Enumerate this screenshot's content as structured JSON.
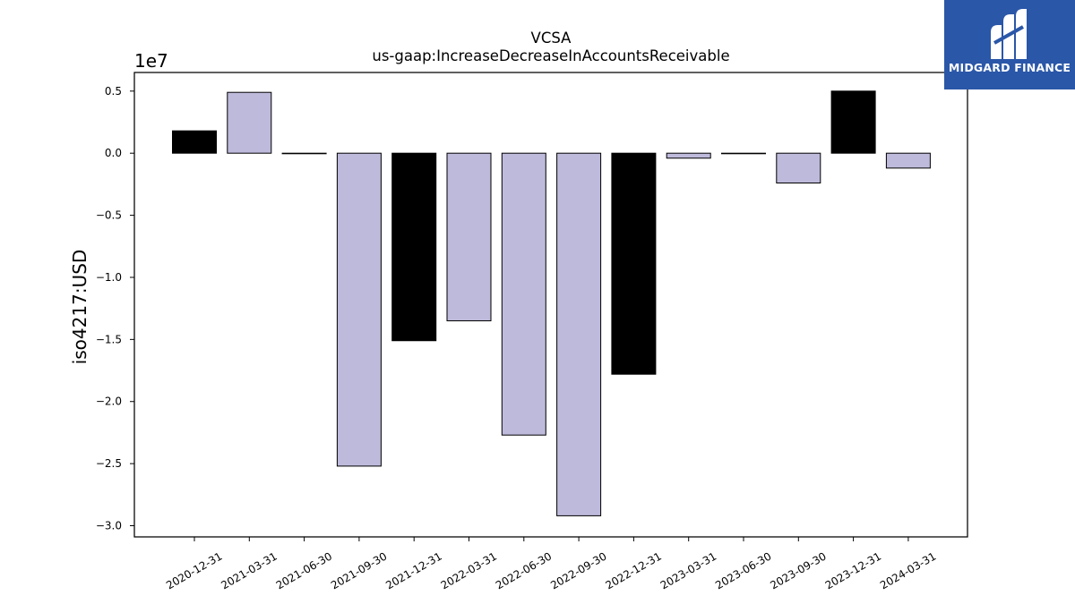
{
  "chart_data": {
    "type": "bar",
    "title": "VCSA",
    "subtitle": "us-gaap:IncreaseDecreaseInAccountsReceivable",
    "xlabel": "",
    "ylabel": "iso4217:USD",
    "y_offset_label": "1e7",
    "y_scale_multiplier": 10000000,
    "ylim": [
      -30900000,
      6500000
    ],
    "yticks": [
      0.5,
      0.0,
      -0.5,
      -1.0,
      -1.5,
      -2.0,
      -2.5,
      -3.0
    ],
    "ytick_labels": [
      "0.5",
      "0.0",
      "−0.5",
      "−1.0",
      "−1.5",
      "−2.0",
      "−2.5",
      "−3.0"
    ],
    "grid": false,
    "legend": "none",
    "categories": [
      "2020-12-31",
      "2021-03-31",
      "2021-06-30",
      "2021-09-30",
      "2021-12-31",
      "2022-03-31",
      "2022-06-30",
      "2022-09-30",
      "2022-12-31",
      "2023-03-31",
      "2023-06-30",
      "2023-09-30",
      "2023-12-31",
      "2024-03-31"
    ],
    "values": [
      1800000,
      4900000,
      0,
      -25200000,
      -15100000,
      -13500000,
      -22700000,
      -29200000,
      -17800000,
      -400000,
      0,
      -2400000,
      5000000,
      -1200000
    ],
    "bar_colors": [
      "#000000",
      "#bdbadb",
      "#000000",
      "#bdbadb",
      "#000000",
      "#bdbadb",
      "#bdbadb",
      "#bdbadb",
      "#000000",
      "#bdbadb",
      "#000000",
      "#bdbadb",
      "#000000",
      "#bdbadb"
    ]
  },
  "logo": {
    "text": "MIDGARD FINANCE",
    "background": "#2a57a8"
  }
}
